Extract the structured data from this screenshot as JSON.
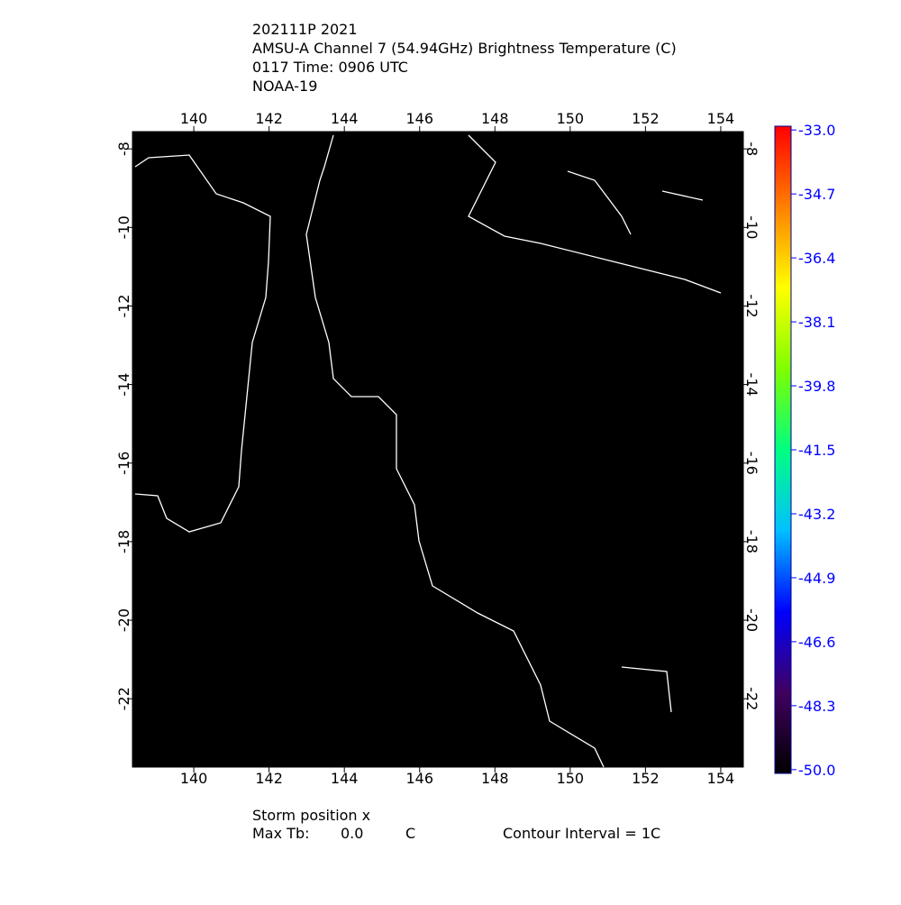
{
  "header": {
    "lines": [
      "202111P 2021",
      "AMSU-A Channel 7 (54.94GHz) Brightness Temperature (C)",
      "0117 Time: 0906 UTC",
      "NOAA-19"
    ]
  },
  "map": {
    "lonlim": [
      138.37,
      154.6
    ],
    "latlim": [
      -7.56,
      -23.74
    ],
    "lon_ticks": [
      140,
      142,
      144,
      146,
      148,
      150,
      152,
      154
    ],
    "lat_ticks": [
      -8,
      -10,
      -12,
      -14,
      -16,
      -18,
      -20,
      -22
    ]
  },
  "colorbar": {
    "lim": [
      -50.1,
      -32.9
    ],
    "colors": [
      "#000000",
      "#400060",
      "#0000ff",
      "#00c0ff",
      "#00ff80",
      "#80ff00",
      "#ffff00",
      "#ff8000",
      "#ff0000"
    ],
    "ticks": [
      {
        "value": -33,
        "label": "-33.0"
      },
      -34.7,
      -36.4,
      -38.1,
      -39.8,
      -41.5,
      -43.2,
      -44.9,
      -46.6,
      -48.3,
      {
        "value": -50,
        "label": "-50.0"
      }
    ]
  },
  "footer": {
    "storm": "Storm position x",
    "max_label": "Max Tb:",
    "max_value": "0.0",
    "unit": "C",
    "contour": "Contour Interval = 1C"
  }
}
